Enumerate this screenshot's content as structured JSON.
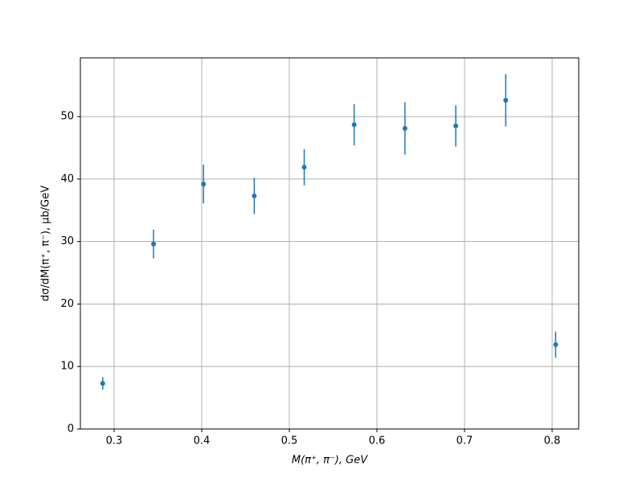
{
  "chart_data": {
    "type": "errorbar",
    "xlabel": "M(π⁺, π⁻), GeV",
    "ylabel": "dσ/dM(π⁺, π⁻), μb/GeV",
    "x": [
      0.287,
      0.345,
      0.402,
      0.46,
      0.517,
      0.574,
      0.632,
      0.69,
      0.747,
      0.804
    ],
    "series": [
      {
        "color": "#1f77b4",
        "values": [
          7.3,
          29.6,
          39.2,
          37.3,
          41.9,
          48.7,
          48.1,
          48.5,
          52.6,
          13.5
        ],
        "errors": [
          1.0,
          2.3,
          3.1,
          2.9,
          2.9,
          3.3,
          4.2,
          3.3,
          4.2,
          2.1
        ]
      }
    ],
    "xlim": [
      0.2615,
      0.8303
    ],
    "ylim": [
      0,
      59.4
    ],
    "xticks": [
      0.3,
      0.4,
      0.5,
      0.6,
      0.7,
      0.8
    ],
    "yticks": [
      0,
      10,
      20,
      30,
      40,
      50
    ],
    "grid": true
  }
}
